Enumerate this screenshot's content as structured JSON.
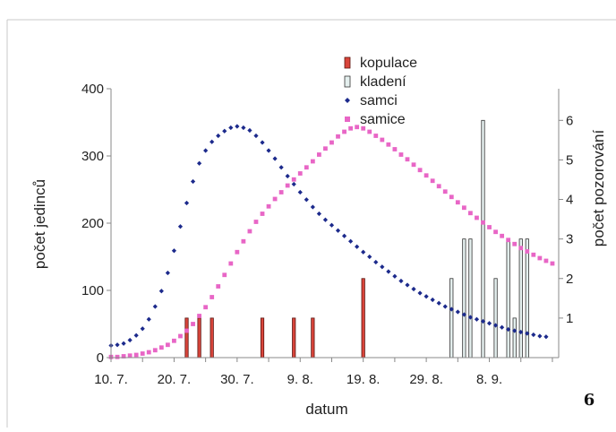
{
  "figure_number": "6",
  "chart_data": {
    "type": "scatter",
    "title": "",
    "xlabel": "datum",
    "ylabel": "počet jedinců",
    "y2label": "počet pozorování",
    "ylim": [
      0,
      400
    ],
    "y2lim": [
      0,
      6.8
    ],
    "xlim": [
      "2000-07-10",
      "2000-09-19"
    ],
    "x_tick_labels": [
      "10. 7.",
      "20. 7.",
      "30. 7.",
      "9. 8.",
      "19. 8.",
      "29. 8.",
      "8. 9."
    ],
    "x_tick_dates": [
      "2000-07-10",
      "2000-07-20",
      "2000-07-30",
      "2000-08-09",
      "2000-08-19",
      "2000-08-29",
      "2000-09-08"
    ],
    "y_ticks": [
      0,
      100,
      200,
      300,
      400
    ],
    "y2_ticks": [
      1,
      2,
      3,
      4,
      5,
      6
    ],
    "legend_position": "top-center",
    "legend": [
      {
        "key": "kopulace",
        "label": "kopulace",
        "marker": "bar"
      },
      {
        "key": "kladeni",
        "label": "kladení",
        "marker": "bar"
      },
      {
        "key": "samci",
        "label": "samci",
        "marker": "diamond"
      },
      {
        "key": "samice",
        "label": "samice",
        "marker": "square"
      }
    ],
    "colors": {
      "kopulace_fill": "#d9453b",
      "kopulace_stroke": "#5a1410",
      "kladeni_fill": "#e4efee",
      "kladeni_stroke": "#333333",
      "samci": "#1c2a8c",
      "samice": "#e866c6",
      "axis": "#888888"
    },
    "series": [
      {
        "key": "samci",
        "axis": "left",
        "x_start": "2000-07-10",
        "x_step_days": 1,
        "values": [
          18,
          19,
          21,
          26,
          33,
          43,
          57,
          76,
          99,
          126,
          159,
          195,
          230,
          262,
          289,
          308,
          321,
          330,
          337,
          342,
          344,
          342,
          338,
          330,
          320,
          308,
          296,
          283,
          270,
          258,
          246,
          235,
          224,
          214,
          205,
          197,
          189,
          181,
          173,
          165,
          157,
          150,
          142,
          135,
          128,
          121,
          114,
          108,
          102,
          96,
          91,
          86,
          81,
          76,
          72,
          68,
          64,
          60,
          57,
          54,
          51,
          48,
          45,
          42,
          40,
          38,
          36,
          34,
          32,
          31
        ]
      },
      {
        "key": "samice",
        "axis": "left",
        "x_start": "2000-07-10",
        "x_step_days": 1,
        "values": [
          1,
          1,
          2,
          3,
          4,
          6,
          8,
          11,
          15,
          19,
          25,
          32,
          40,
          50,
          62,
          75,
          90,
          106,
          123,
          140,
          157,
          173,
          188,
          202,
          214,
          225,
          236,
          246,
          256,
          265,
          274,
          283,
          292,
          302,
          311,
          320,
          329,
          336,
          341,
          343,
          341,
          336,
          330,
          324,
          317,
          310,
          302,
          295,
          287,
          279,
          271,
          263,
          255,
          247,
          239,
          231,
          223,
          215,
          208,
          201,
          194,
          187,
          181,
          175,
          169,
          163,
          158,
          153,
          148,
          144,
          140
        ]
      },
      {
        "key": "kopulace",
        "axis": "right",
        "points": [
          [
            "2000-07-22",
            1
          ],
          [
            "2000-07-24",
            1
          ],
          [
            "2000-07-26",
            1
          ],
          [
            "2000-08-03",
            1
          ],
          [
            "2000-08-08",
            1
          ],
          [
            "2000-08-11",
            1
          ],
          [
            "2000-08-19",
            2
          ]
        ]
      },
      {
        "key": "kladeni",
        "axis": "right",
        "points": [
          [
            "2000-09-02",
            2
          ],
          [
            "2000-09-04",
            3
          ],
          [
            "2000-09-05",
            3
          ],
          [
            "2000-09-07",
            6
          ],
          [
            "2000-09-09",
            2
          ],
          [
            "2000-09-11",
            3
          ],
          [
            "2000-09-12",
            1
          ],
          [
            "2000-09-13",
            3
          ],
          [
            "2000-09-14",
            3
          ]
        ]
      }
    ]
  }
}
